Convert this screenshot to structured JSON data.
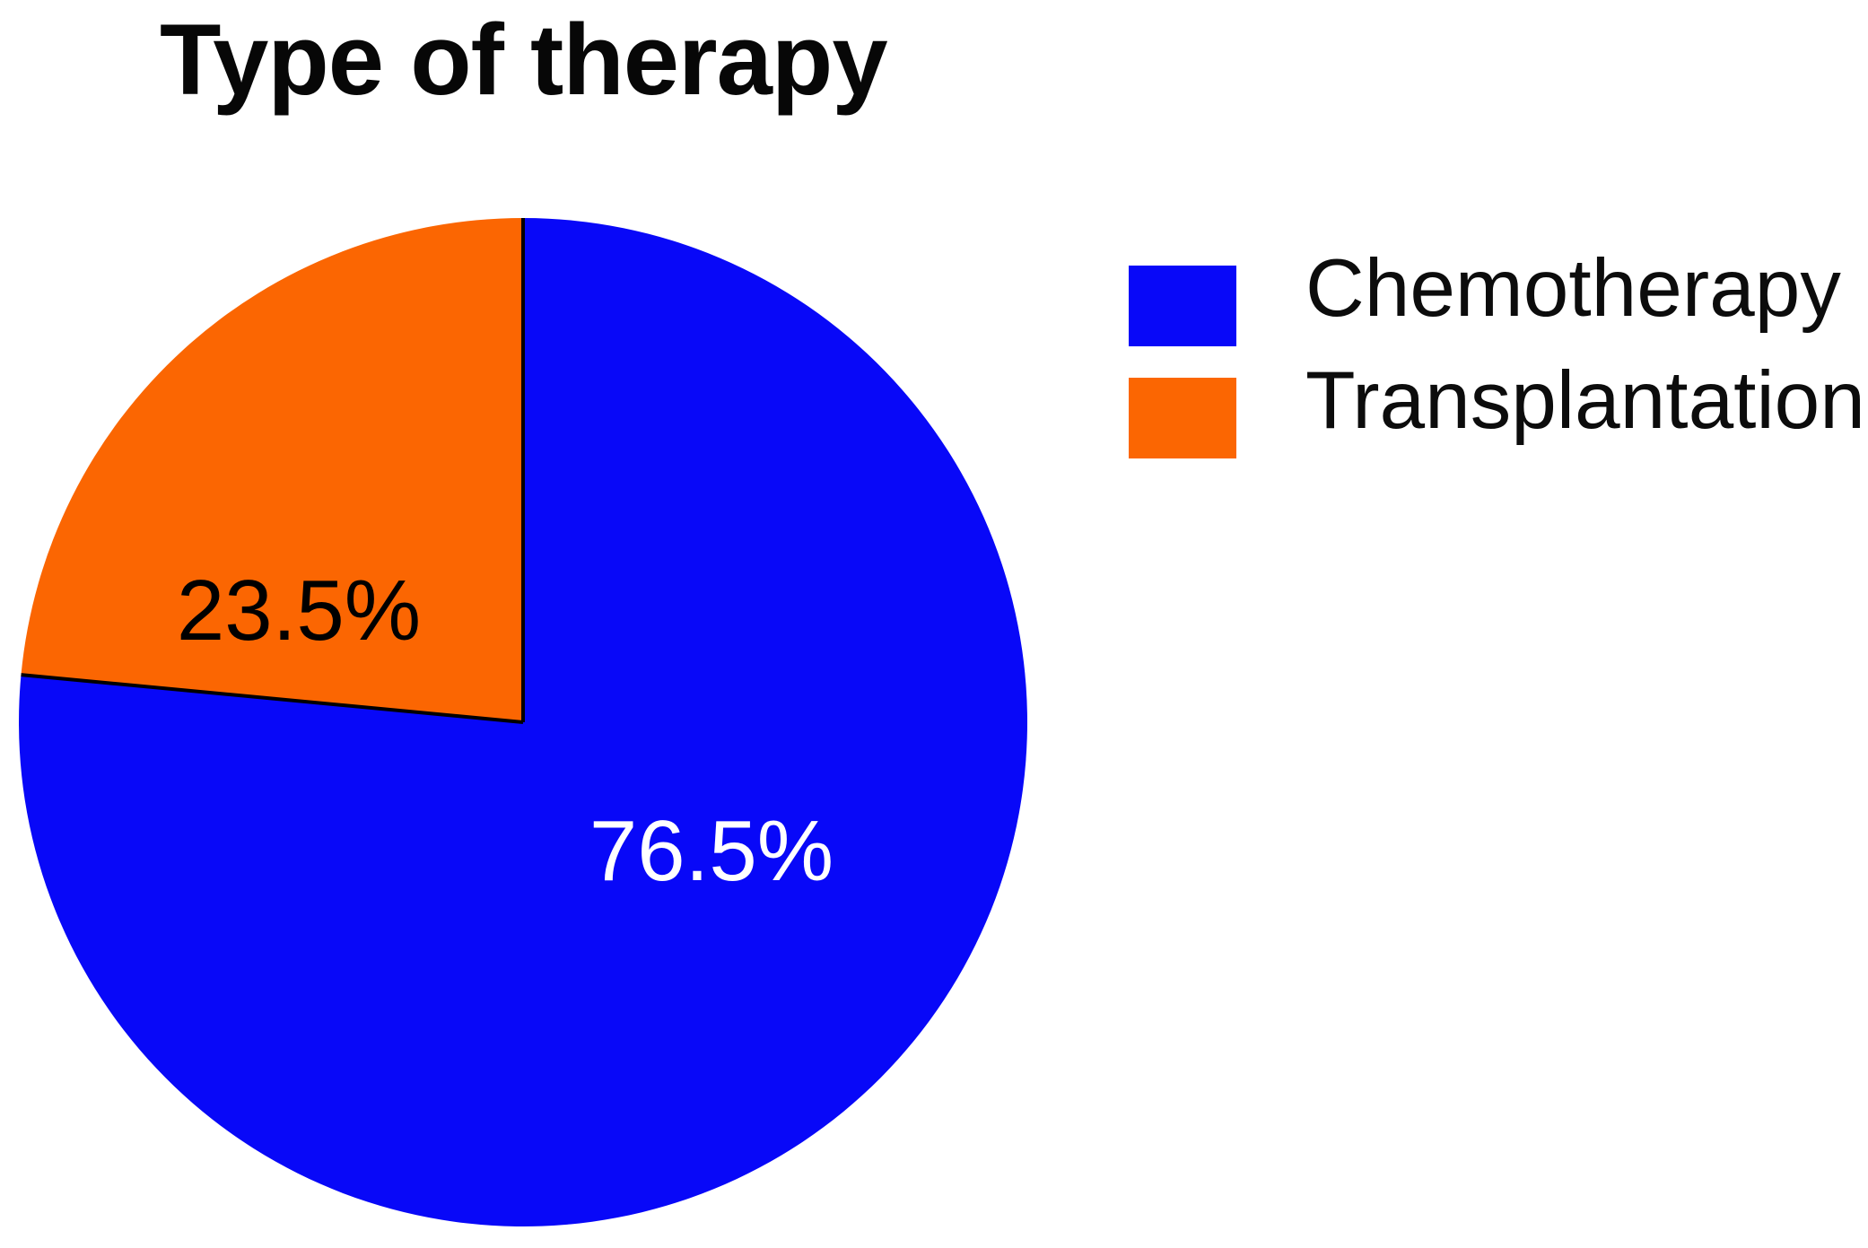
{
  "title": "Type of therapy",
  "chart_data": {
    "type": "pie",
    "title": "Type of therapy",
    "categories": [
      "Chemotherapy",
      "Transplantation"
    ],
    "values": [
      76.5,
      23.5
    ],
    "unit": "%",
    "colors": [
      "#0808F8",
      "#FB6602"
    ],
    "slice_labels": [
      "76.5%",
      "23.5%"
    ],
    "slice_label_colors": [
      "#FFFFFF",
      "#000000"
    ],
    "divider_color": "#000000",
    "start_angle_deg": 90,
    "direction": "clockwise",
    "legend_position": "right",
    "grid": false
  },
  "legend": {
    "items": [
      {
        "label": "Chemotherapy",
        "color": "#0808F8"
      },
      {
        "label": "Transplantation",
        "color": "#FB6602"
      }
    ]
  }
}
